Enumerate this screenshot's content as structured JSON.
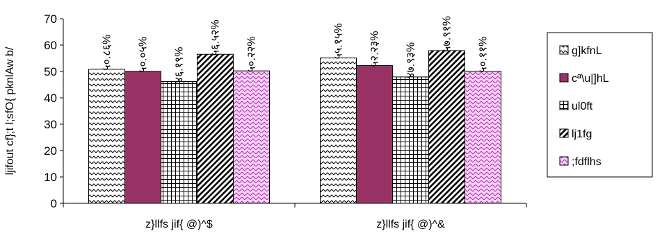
{
  "chart_data": {
    "type": "bar",
    "ylabel": "ljifout cf};t l;sfO{ pknlAw b/",
    "ylim": [
      0,
      70
    ],
    "yticks": [
      0,
      10,
      20,
      30,
      40,
      50,
      60,
      70
    ],
    "categories": [
      "z}llfs jif{ @)^$",
      "z}llfs jif{ @)^&"
    ],
    "series": [
      {
        "name": "g]kfnL",
        "values": [
          50.86,
          55.15
        ],
        "labels": [
          "५०.८६%",
          "५५.१५%"
        ],
        "color": "#ffffff",
        "pattern": "wave"
      },
      {
        "name": "cª\\u|]hL",
        "values": [
          50.05,
          52.23
        ],
        "labels": [
          "५०.०५%",
          "५२.२३%"
        ],
        "color": "#993366",
        "pattern": "solid"
      },
      {
        "name": "ul0ft",
        "values": [
          46.19,
          47.93
        ],
        "labels": [
          "४६.१९%",
          "४७.९३%"
        ],
        "color": "#ffffff",
        "pattern": "grid"
      },
      {
        "name": "lj1fg",
        "values": [
          56.52,
          57.91
        ],
        "labels": [
          "५६.५२%",
          "५७.९१%"
        ],
        "color": "#ffffff",
        "pattern": "diagonal"
      },
      {
        "name": ";fdflhs",
        "values": [
          50.22,
          50.11
        ],
        "labels": [
          "५०.२२%",
          "५०.११%"
        ],
        "color": "#ffccff",
        "pattern": "weave"
      }
    ],
    "legend_position": "right",
    "grid": false
  }
}
